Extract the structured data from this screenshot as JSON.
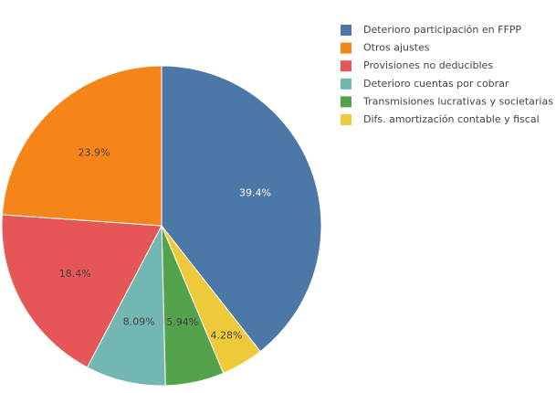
{
  "chart_data": {
    "type": "pie",
    "title": "",
    "legend_position": "top-right",
    "slices": [
      {
        "label": "Deterioro participación en FFPP",
        "value": 39.4,
        "display": "39.4%",
        "color": "#4c78a8",
        "label_color": "#ffffff"
      },
      {
        "label": "Difs.  amortización contable y fiscal",
        "value": 4.28,
        "display": "4.28%",
        "color": "#eeca3b",
        "label_color": "#444444"
      },
      {
        "label": "Transmisiones lucrativas y societarias",
        "value": 5.94,
        "display": "5.94%",
        "color": "#54a24b",
        "label_color": "#444444"
      },
      {
        "label": "Deterioro cuentas por cobrar",
        "value": 8.09,
        "display": "8.09%",
        "color": "#72b7b2",
        "label_color": "#444444"
      },
      {
        "label": "Provisiones no deducibles",
        "value": 18.4,
        "display": "18.4%",
        "color": "#e45756",
        "label_color": "#444444"
      },
      {
        "label": "Otros ajustes",
        "value": 23.9,
        "display": "23.9%",
        "color": "#f58518",
        "label_color": "#444444"
      }
    ],
    "legend_order": [
      "Deterioro participación en FFPP",
      "Otros ajustes",
      "Provisiones no deducibles",
      "Deterioro cuentas por cobrar",
      "Transmisiones lucrativas y societarias",
      "Difs.  amortización contable y fiscal"
    ]
  }
}
